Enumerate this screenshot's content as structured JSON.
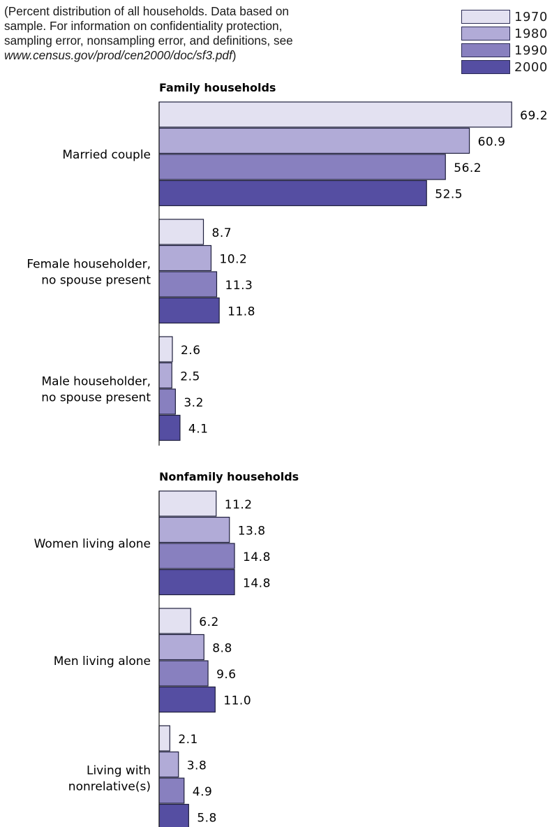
{
  "note": {
    "text": "(Percent distribution of all households. Data based on sample. For information on confidentiality protection, sampling error, nonsampling error, and definitions, see ",
    "url": "www.census.gov/prod/cen2000/doc/sf3.pdf",
    "close": ")"
  },
  "colors": {
    "1970": "#e3e1f1",
    "1980": "#b1abd7",
    "1990": "#8880bf",
    "2000": "#554ea2"
  },
  "chart_data": {
    "type": "bar",
    "orientation": "horizontal",
    "legend": {
      "placement": "top-right",
      "entries": [
        "1970",
        "1980",
        "1990",
        "2000"
      ]
    },
    "panels": [
      {
        "title": "Family households",
        "categories": [
          [
            "Married couple"
          ],
          [
            "Female householder,",
            "no spouse present"
          ],
          [
            "Male householder,",
            "no spouse present"
          ]
        ],
        "series": [
          {
            "name": "1970",
            "values": [
              69.2,
              8.7,
              2.6
            ]
          },
          {
            "name": "1980",
            "values": [
              60.9,
              10.2,
              2.5
            ]
          },
          {
            "name": "1990",
            "values": [
              56.2,
              11.3,
              3.2
            ]
          },
          {
            "name": "2000",
            "values": [
              52.5,
              11.8,
              4.1
            ]
          }
        ]
      },
      {
        "title": "Nonfamily households",
        "categories": [
          [
            "Women living alone"
          ],
          [
            "Men living alone"
          ],
          [
            "Living with",
            "nonrelative(s)"
          ]
        ],
        "series": [
          {
            "name": "1970",
            "values": [
              11.2,
              6.2,
              2.1
            ]
          },
          {
            "name": "1980",
            "values": [
              13.8,
              8.8,
              3.8
            ]
          },
          {
            "name": "1990",
            "values": [
              14.8,
              9.6,
              4.9
            ]
          },
          {
            "name": "2000",
            "values": [
              14.8,
              11.0,
              5.8
            ]
          }
        ]
      }
    ]
  }
}
